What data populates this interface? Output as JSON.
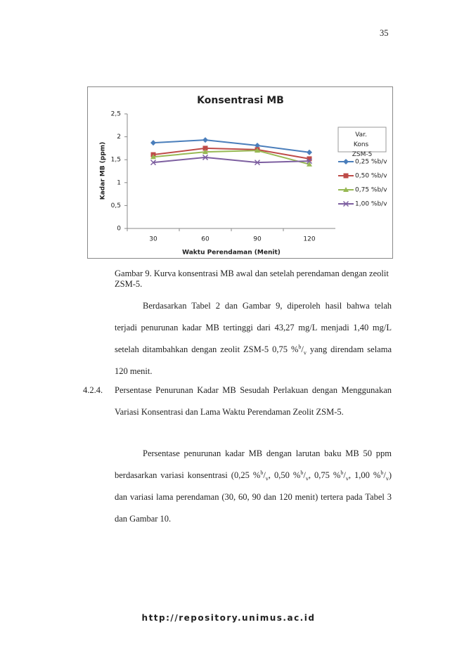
{
  "page_number": "35",
  "chart_data": {
    "type": "line",
    "title": "Konsentrasi  MB",
    "x_label": "Waktu Perendaman (Menit)",
    "y_label": "Kadar MB (ppm)",
    "categories": [
      "30",
      "60",
      "90",
      "120"
    ],
    "ylim": [
      0,
      2.5
    ],
    "yticks": [
      0,
      {
        "value": 0.5,
        "label": "0,5"
      },
      1,
      {
        "value": 1.5,
        "label": "1,5"
      },
      2,
      {
        "value": 2.5,
        "label": "2,5"
      }
    ],
    "legend_title": "Var. Kons ZSM-5",
    "series": [
      {
        "name": "0,25 %b/v",
        "color": "#4a7ebb",
        "marker": "diamond",
        "values": [
          1.87,
          1.93,
          1.81,
          1.66
        ]
      },
      {
        "name": "0,50 %b/v",
        "color": "#be4b48",
        "marker": "square",
        "values": [
          1.61,
          1.75,
          1.72,
          1.52
        ]
      },
      {
        "name": "0,75 %b/v",
        "color": "#98b954",
        "marker": "triangle",
        "values": [
          1.56,
          1.67,
          1.7,
          1.4
        ]
      },
      {
        "name": "1,00 %b/v",
        "color": "#7d5fa0",
        "marker": "x",
        "values": [
          1.44,
          1.55,
          1.44,
          1.47
        ]
      }
    ]
  },
  "caption": {
    "label": "Gambar 9.",
    "text": "Kurva konsentrasi MB awal dan setelah perendaman dengan zeolit ZSM-5."
  },
  "paragraph_1": [
    "Berdasarkan Tabel 2 dan Gambar 9, diperoleh hasil bahwa telah terjadi penurunan kadar MB tertinggi dari 43,27 mg/L menjadi 1,40 mg/L setelah ditambahkan dengan zeolit ZSM-5 0,75 %",
    "b",
    "/",
    "v",
    " yang direndam selama 120 menit."
  ],
  "section": {
    "number": "4.2.4.",
    "title": "Persentase Penurunan Kadar MB Sesudah Perlakuan dengan Menggunakan Variasi Konsentrasi dan Lama Waktu Perendaman Zeolit ZSM-5."
  },
  "paragraph_2": [
    "Persentase penurunan kadar MB dengan larutan baku MB 50 ppm berdasarkan variasi konsentrasi (0,25 %",
    "b",
    "/",
    "v",
    ", 0,50 %",
    "b",
    "/",
    "v",
    ", 0,75 %",
    "b",
    "/",
    "v",
    ", 1,00 %",
    "b",
    "/",
    "v",
    ") dan variasi lama perendaman (30, 60, 90 dan 120 menit) tertera pada Tabel 3 dan Gambar 10."
  ],
  "footer": "http://repository.unimus.ac.id"
}
